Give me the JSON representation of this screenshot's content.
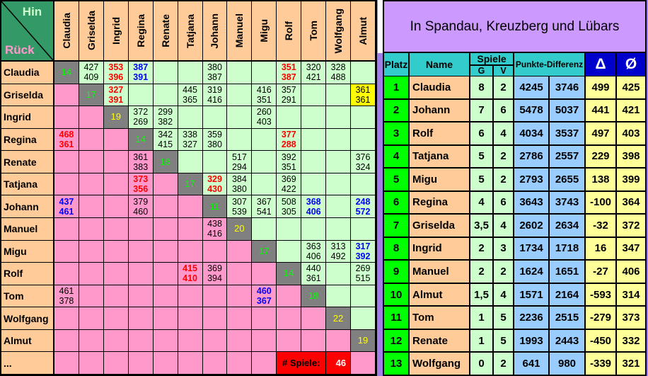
{
  "matrix": {
    "corner": {
      "hin_label": "Hin",
      "rueck_label": "Rück"
    },
    "players": [
      "Claudia",
      "Griselda",
      "Ingrid",
      "Regina",
      "Renate",
      "Tatjana",
      "Johann",
      "Manuel",
      "Migu",
      "Rolf",
      "Tom",
      "Wolfgang",
      "Almut"
    ],
    "extra_row_label": "...",
    "diagonal": [
      {
        "v": "14",
        "c": "g"
      },
      {
        "v": "17",
        "c": "g"
      },
      {
        "v": "19",
        "c": "y"
      },
      {
        "v": "14",
        "c": "g"
      },
      {
        "v": "18",
        "c": "g"
      },
      {
        "v": "17",
        "c": "g"
      },
      {
        "v": "11",
        "c": "g"
      },
      {
        "v": "20",
        "c": "y"
      },
      {
        "v": "17",
        "c": "g"
      },
      {
        "v": "14",
        "c": "g"
      },
      {
        "v": "18",
        "c": "g"
      },
      {
        "v": "22",
        "c": "y"
      },
      {
        "v": "19",
        "c": "y"
      }
    ],
    "cells": [
      {
        "r": 0,
        "c": 1,
        "t": "427",
        "b": "409",
        "s": ""
      },
      {
        "r": 0,
        "c": 2,
        "t": "353",
        "b": "396",
        "s": "red"
      },
      {
        "r": 0,
        "c": 3,
        "t": "387",
        "b": "391",
        "s": "blue"
      },
      {
        "r": 0,
        "c": 6,
        "t": "380",
        "b": "387",
        "s": ""
      },
      {
        "r": 0,
        "c": 9,
        "t": "351",
        "b": "387",
        "s": "red"
      },
      {
        "r": 0,
        "c": 10,
        "t": "320",
        "b": "421",
        "s": ""
      },
      {
        "r": 0,
        "c": 11,
        "t": "328",
        "b": "488",
        "s": ""
      },
      {
        "r": 1,
        "c": 2,
        "t": "327",
        "b": "391",
        "s": "red"
      },
      {
        "r": 1,
        "c": 5,
        "t": "445",
        "b": "365",
        "s": ""
      },
      {
        "r": 1,
        "c": 6,
        "t": "319",
        "b": "416",
        "s": ""
      },
      {
        "r": 1,
        "c": 8,
        "t": "416",
        "b": "351",
        "s": ""
      },
      {
        "r": 1,
        "c": 9,
        "t": "357",
        "b": "291",
        "s": ""
      },
      {
        "r": 1,
        "c": 12,
        "t": "361",
        "b": "361",
        "s": "",
        "bg": "yellow"
      },
      {
        "r": 2,
        "c": 3,
        "t": "372",
        "b": "269",
        "s": ""
      },
      {
        "r": 2,
        "c": 4,
        "t": "299",
        "b": "382",
        "s": ""
      },
      {
        "r": 2,
        "c": 8,
        "t": "260",
        "b": "403",
        "s": ""
      },
      {
        "r": 3,
        "c": 0,
        "t": "468",
        "b": "361",
        "s": "red"
      },
      {
        "r": 3,
        "c": 4,
        "t": "342",
        "b": "415",
        "s": ""
      },
      {
        "r": 3,
        "c": 5,
        "t": "338",
        "b": "327",
        "s": ""
      },
      {
        "r": 3,
        "c": 6,
        "t": "359",
        "b": "380",
        "s": ""
      },
      {
        "r": 3,
        "c": 9,
        "t": "377",
        "b": "288",
        "s": "red"
      },
      {
        "r": 4,
        "c": 3,
        "t": "361",
        "b": "383",
        "s": ""
      },
      {
        "r": 4,
        "c": 7,
        "t": "517",
        "b": "294",
        "s": ""
      },
      {
        "r": 4,
        "c": 9,
        "t": "392",
        "b": "351",
        "s": ""
      },
      {
        "r": 4,
        "c": 12,
        "t": "376",
        "b": "324",
        "s": ""
      },
      {
        "r": 5,
        "c": 3,
        "t": "373",
        "b": "356",
        "s": "red"
      },
      {
        "r": 5,
        "c": 6,
        "t": "329",
        "b": "430",
        "s": "red"
      },
      {
        "r": 5,
        "c": 7,
        "t": "384",
        "b": "380",
        "s": ""
      },
      {
        "r": 5,
        "c": 9,
        "t": "369",
        "b": "422",
        "s": ""
      },
      {
        "r": 6,
        "c": 0,
        "t": "437",
        "b": "461",
        "s": "blue"
      },
      {
        "r": 6,
        "c": 3,
        "t": "379",
        "b": "460",
        "s": ""
      },
      {
        "r": 6,
        "c": 7,
        "t": "307",
        "b": "539",
        "s": ""
      },
      {
        "r": 6,
        "c": 8,
        "t": "367",
        "b": "541",
        "s": ""
      },
      {
        "r": 6,
        "c": 9,
        "t": "508",
        "b": "305",
        "s": ""
      },
      {
        "r": 6,
        "c": 10,
        "t": "368",
        "b": "406",
        "s": "blue"
      },
      {
        "r": 6,
        "c": 12,
        "t": "248",
        "b": "572",
        "s": "blue"
      },
      {
        "r": 7,
        "c": 6,
        "t": "438",
        "b": "416",
        "s": ""
      },
      {
        "r": 8,
        "c": 10,
        "t": "363",
        "b": "406",
        "s": ""
      },
      {
        "r": 8,
        "c": 11,
        "t": "313",
        "b": "492",
        "s": ""
      },
      {
        "r": 8,
        "c": 12,
        "t": "317",
        "b": "392",
        "s": "blue"
      },
      {
        "r": 9,
        "c": 5,
        "t": "415",
        "b": "410",
        "s": "red"
      },
      {
        "r": 9,
        "c": 6,
        "t": "369",
        "b": "394",
        "s": ""
      },
      {
        "r": 9,
        "c": 10,
        "t": "440",
        "b": "361",
        "s": ""
      },
      {
        "r": 9,
        "c": 12,
        "t": "269",
        "b": "515",
        "s": ""
      },
      {
        "r": 10,
        "c": 0,
        "t": "461",
        "b": "378",
        "s": ""
      },
      {
        "r": 10,
        "c": 8,
        "t": "460",
        "b": "367",
        "s": "blue"
      }
    ],
    "spiele_label": "# Spiele:",
    "spiele_count": "46"
  },
  "standings": {
    "title": "In Spandau, Kreuzberg und Lübars",
    "headers": {
      "platz": "Platz",
      "name": "Name",
      "spiele": "Spiele",
      "g": "G",
      "v": "V",
      "punkte": "Punkte-Differenz",
      "delta": "Δ",
      "avg": "Ø"
    },
    "rows": [
      {
        "platz": "1",
        "name": "Claudia",
        "g": "8",
        "v": "2",
        "pd1": "4245",
        "pd2": "3746",
        "delta": "499",
        "avg": "425"
      },
      {
        "platz": "2",
        "name": "Johann",
        "g": "7",
        "v": "6",
        "pd1": "5478",
        "pd2": "5037",
        "delta": "441",
        "avg": "421"
      },
      {
        "platz": "3",
        "name": "Rolf",
        "g": "6",
        "v": "4",
        "pd1": "4034",
        "pd2": "3537",
        "delta": "497",
        "avg": "403"
      },
      {
        "platz": "4",
        "name": "Tatjana",
        "g": "5",
        "v": "2",
        "pd1": "2786",
        "pd2": "2557",
        "delta": "229",
        "avg": "398"
      },
      {
        "platz": "5",
        "name": "Migu",
        "g": "5",
        "v": "2",
        "pd1": "2793",
        "pd2": "2655",
        "delta": "138",
        "avg": "399"
      },
      {
        "platz": "6",
        "name": "Regina",
        "g": "4",
        "v": "6",
        "pd1": "3643",
        "pd2": "3743",
        "delta": "-100",
        "avg": "364"
      },
      {
        "platz": "7",
        "name": "Griselda",
        "g": "3,5",
        "v": "4",
        "pd1": "2602",
        "pd2": "2634",
        "delta": "-32",
        "avg": "372"
      },
      {
        "platz": "8",
        "name": "Ingrid",
        "g": "2",
        "v": "3",
        "pd1": "1734",
        "pd2": "1718",
        "delta": "16",
        "avg": "347"
      },
      {
        "platz": "9",
        "name": "Manuel",
        "g": "2",
        "v": "2",
        "pd1": "1624",
        "pd2": "1651",
        "delta": "-27",
        "avg": "406"
      },
      {
        "platz": "10",
        "name": "Almut",
        "g": "1,5",
        "v": "4",
        "pd1": "1571",
        "pd2": "2164",
        "delta": "-593",
        "avg": "314"
      },
      {
        "platz": "11",
        "name": "Tom",
        "g": "1",
        "v": "5",
        "pd1": "2236",
        "pd2": "2515",
        "delta": "-279",
        "avg": "373"
      },
      {
        "platz": "12",
        "name": "Renate",
        "g": "1",
        "v": "5",
        "pd1": "1993",
        "pd2": "2443",
        "delta": "-450",
        "avg": "332"
      },
      {
        "platz": "13",
        "name": "Wolfgang",
        "g": "0",
        "v": "2",
        "pd1": "641",
        "pd2": "980",
        "delta": "-339",
        "avg": "321"
      }
    ]
  },
  "colors": {
    "header_peach": "#FFCC99",
    "win_green": "#CCFFCC",
    "loss_pink": "#FF99CC",
    "diagonal_gray": "#808080",
    "diag_text_green": "#00FF00",
    "diag_text_yellow": "#FFFF00",
    "hin_cell_green": "#339966",
    "hin_text": "#CCFFCC",
    "rueck_text": "#FF99CC",
    "highlight_yellow": "#FFFF00",
    "spiele_red": "#FF0000",
    "score_red": "#FF0000",
    "score_blue": "#0000FF",
    "banner_purple": "#CC99FF",
    "header_cyan": "#33CCCC",
    "symbol_blue": "#0000CC",
    "platz_green": "#00FF00",
    "points_blue": "#99CCFF",
    "delta_yellow": "#FFFF99",
    "frame_violet": "#A080E6"
  }
}
